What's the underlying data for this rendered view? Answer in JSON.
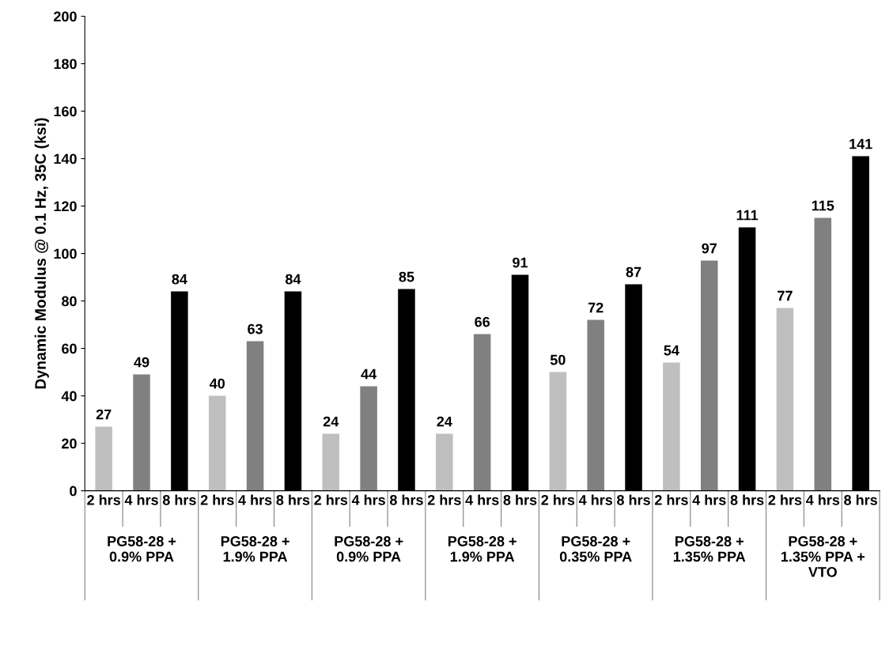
{
  "chart_data": {
    "type": "bar",
    "ylabel": "Dynamic Modulus @ 0.1 Hz, 35C (ksi)",
    "categories": [
      "2 hrs",
      "4 hrs",
      "8 hrs",
      "2 hrs",
      "4 hrs",
      "8 hrs",
      "2 hrs",
      "4 hrs",
      "8 hrs",
      "2 hrs",
      "4 hrs",
      "8 hrs",
      "2 hrs",
      "4 hrs",
      "8 hrs",
      "2 hrs",
      "4 hrs",
      "8 hrs",
      "2 hrs",
      "4 hrs",
      "8 hrs"
    ],
    "values": [
      27,
      49,
      84,
      40,
      63,
      84,
      24,
      44,
      85,
      24,
      66,
      91,
      50,
      72,
      87,
      54,
      97,
      111,
      77,
      115,
      141
    ],
    "colors": [
      "#bfbfbf",
      "#808080",
      "#000000",
      "#bfbfbf",
      "#808080",
      "#000000",
      "#bfbfbf",
      "#808080",
      "#000000",
      "#bfbfbf",
      "#808080",
      "#000000",
      "#bfbfbf",
      "#808080",
      "#000000",
      "#bfbfbf",
      "#808080",
      "#000000",
      "#bfbfbf",
      "#808080",
      "#000000"
    ],
    "ylim": [
      0,
      200
    ],
    "yticks": [
      0,
      20,
      40,
      60,
      80,
      100,
      120,
      140,
      160,
      180,
      200
    ],
    "data_labels": true,
    "annotations": [
      "PG58-28 +\n0.9% PPA",
      "PG58-28 +\n1.9% PPA",
      "PG58-28 +\n0.9% PPA",
      "PG58-28 +\n1.9% PPA",
      "PG58-28 +\n0.35% PPA",
      "PG58-28 +\n1.35% PPA",
      "PG58-28 +\n1.35% PPA +\nVTO"
    ]
  }
}
